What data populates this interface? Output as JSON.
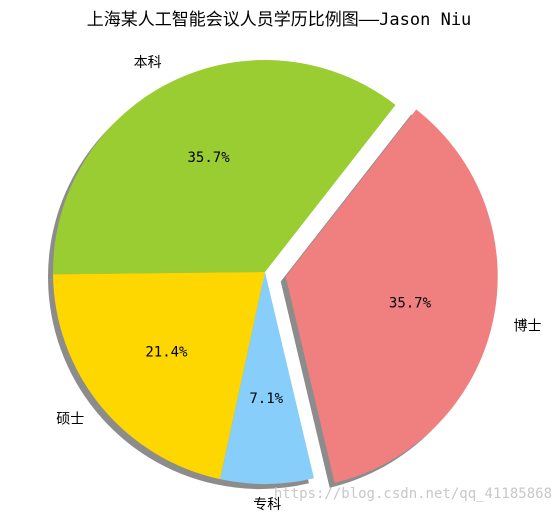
{
  "chart_data": {
    "type": "pie",
    "title": "上海某人工智能会议人员学历比例图——Jason Niu",
    "categories": [
      "本科",
      "硕士",
      "专科",
      "博士"
    ],
    "values": [
      35.7,
      21.4,
      7.1,
      35.7
    ],
    "value_labels": [
      "35.7%",
      "21.4%",
      "7.1%",
      "35.7%"
    ],
    "colors": [
      "#9acd32",
      "#ffd700",
      "#87cefa",
      "#f08080"
    ],
    "shadow": true,
    "watermark": "https://blog.csdn.net/qq_41185868"
  }
}
